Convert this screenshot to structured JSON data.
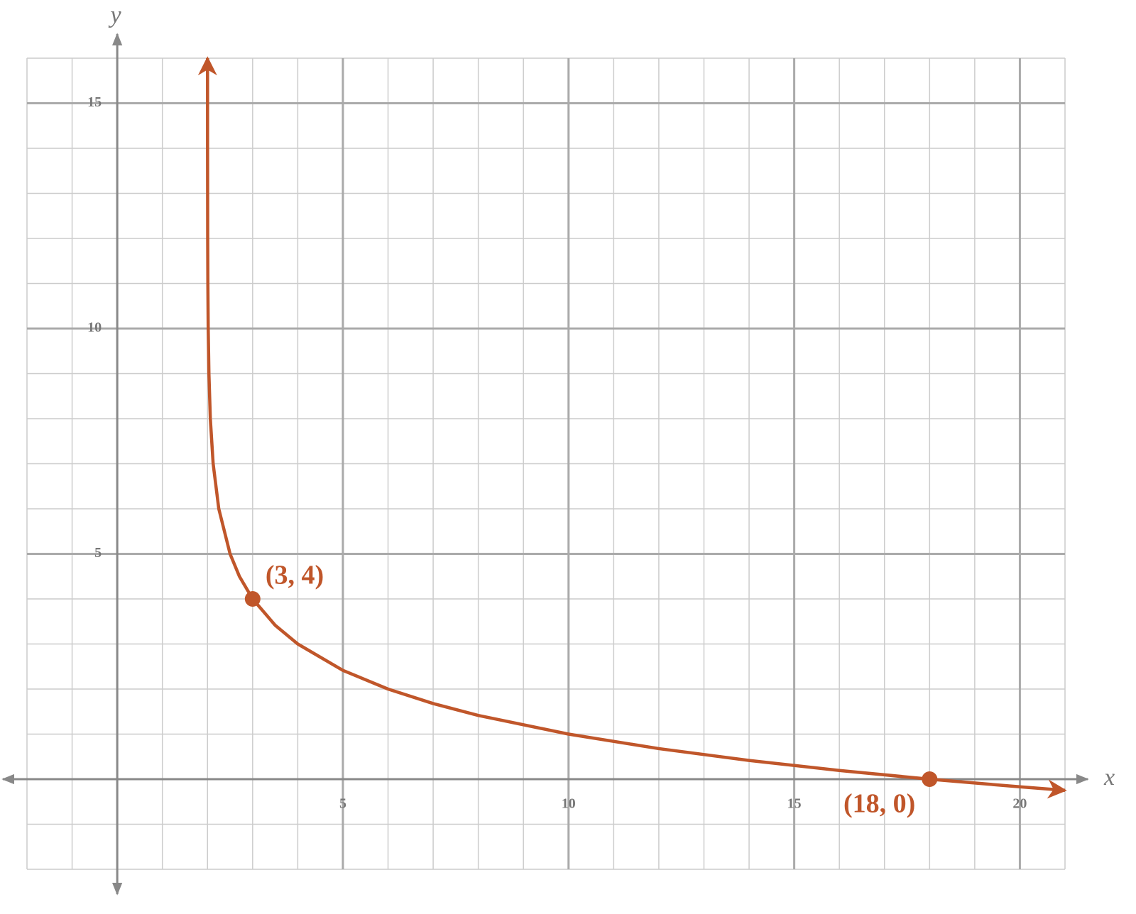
{
  "chart_data": {
    "type": "function",
    "x_label": "x",
    "y_label": "y",
    "xlim": [
      -2,
      21
    ],
    "ylim": [
      -2,
      16
    ],
    "xticks": [
      5,
      10,
      15,
      20
    ],
    "yticks": [
      5,
      10,
      15
    ],
    "grid": true,
    "color": "#c0562a",
    "x": [
      2.00024,
      2.00098,
      2.0039,
      2.0078,
      2.0156,
      2.03125,
      2.0625,
      2.125,
      2.25,
      2.5,
      2.707,
      3,
      3.5,
      4,
      5,
      6,
      7,
      8,
      10,
      12,
      14,
      16,
      18,
      20,
      21
    ],
    "values": [
      16,
      14,
      12,
      11,
      10,
      9,
      8,
      7,
      6,
      5,
      4.5,
      4,
      3.415,
      3,
      2.415,
      2,
      1.678,
      1.415,
      1,
      0.678,
      0.415,
      0.193,
      0,
      -0.17,
      -0.248
    ],
    "points": [
      {
        "x": 3,
        "y": 4,
        "label": "(3, 4)"
      },
      {
        "x": 18,
        "y": 0,
        "label": "(18, 0)"
      }
    ]
  }
}
